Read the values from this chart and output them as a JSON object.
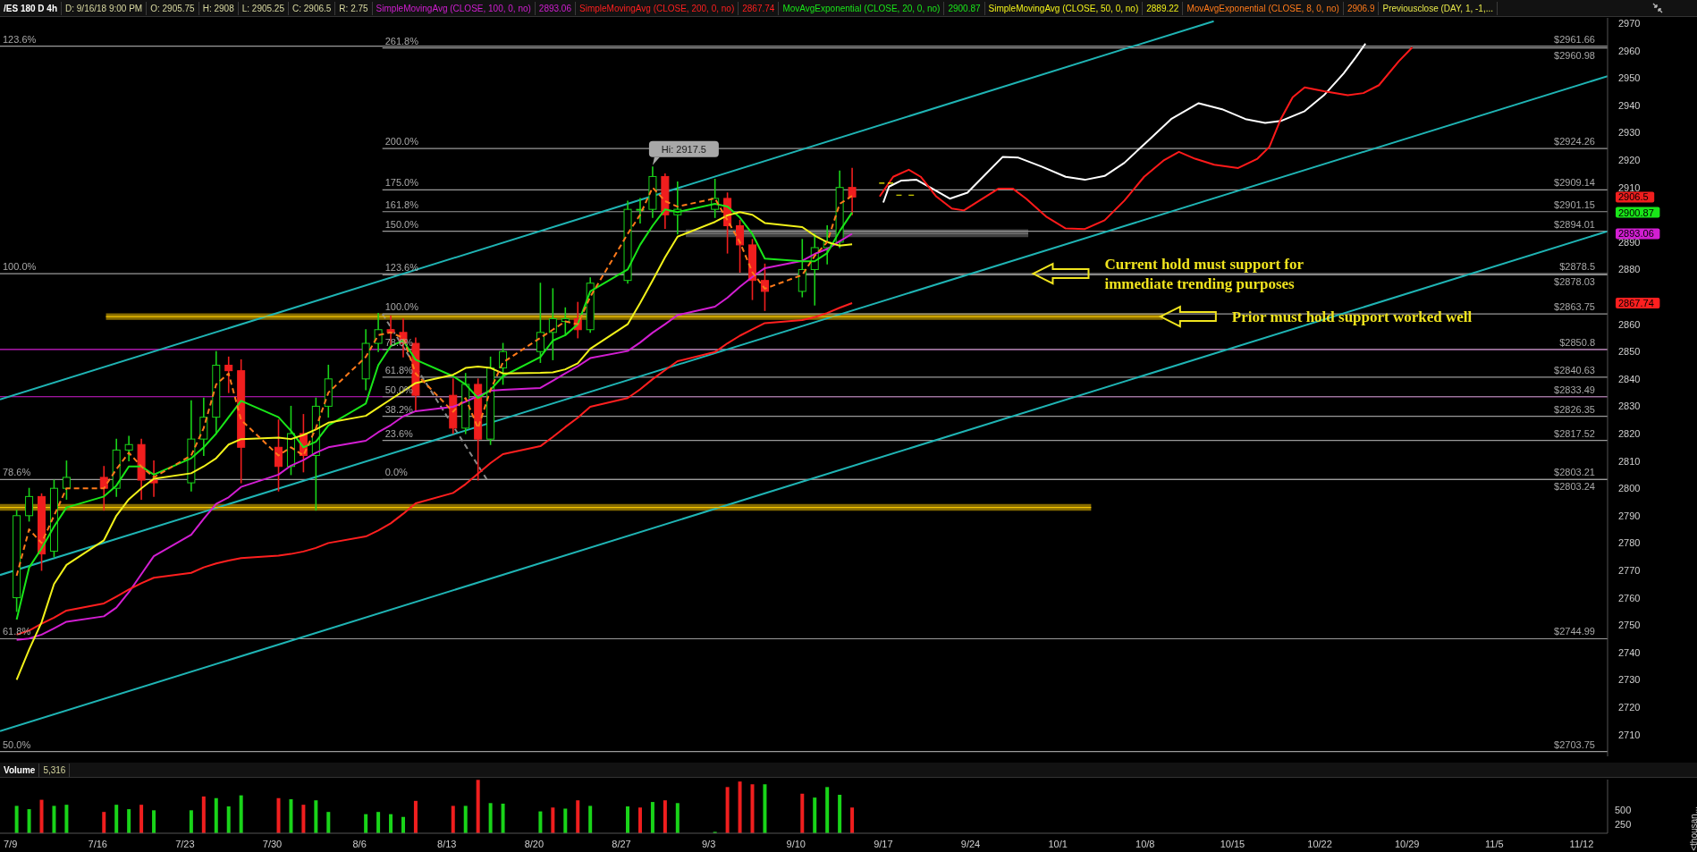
{
  "chart_data": [
    {
      "type": "candlestick",
      "title": "/ES 180 D 4h",
      "subtitle": "Previousclose (DAY, 1, -1,...",
      "legend": "top",
      "tick_labels": "y",
      "x": [
        "--07-09T12:00",
        "--07-10T12:00",
        "--07-11T12:00",
        "--07-12T12:00",
        "--07-13T12:00",
        "--07-16T12:00",
        "--07-17T12:00",
        "--07-18T12:00",
        "--07-19T12:00",
        "--07-20T12:00",
        "--07-23T12:00",
        "--07-24T12:00",
        "--07-25T12:00",
        "--07-26T12:00",
        "--07-27T12:00",
        "--07-30T12:00",
        "--07-31T12:00",
        "--08-01T12:00",
        "--08-02T12:00",
        "--08-03T12:00",
        "--08-06T12:00",
        "--08-07T12:00",
        "--08-08T12:00",
        "--08-09T12:00",
        "--08-10T12:00",
        "--08-13T12:00",
        "--08-14T12:00",
        "--08-15T12:00",
        "--08-16T12:00",
        "--08-17T12:00",
        "--08-20T12:00",
        "--08-21T12:00",
        "--08-22T12:00",
        "--08-23T12:00",
        "--08-24T12:00",
        "--08-27T12:00",
        "--08-28T12:00",
        "--08-29T12:00",
        "--08-30T12:00",
        "--08-31T12:00",
        "--09-03T12:00",
        "--09-04T12:00",
        "--09-05T12:00",
        "--09-06T12:00",
        "--09-07T12:00",
        "--09-10T12:00",
        "--09-11T12:00",
        "--09-12T12:00",
        "--09-13T12:00",
        "--09-14T12:00"
      ],
      "ohlc": [
        [
          2760,
          2792,
          2755,
          2790
        ],
        [
          2790,
          2800,
          2788,
          2797
        ],
        [
          2797,
          2798,
          2770,
          2776
        ],
        [
          2777,
          2803,
          2775,
          2800
        ],
        [
          2800,
          2810,
          2796,
          2804
        ],
        [
          2804,
          2808,
          2792,
          2800
        ],
        [
          2800,
          2818,
          2797,
          2814
        ],
        [
          2814,
          2819,
          2810,
          2816
        ],
        [
          2816,
          2818,
          2796,
          2803
        ],
        [
          2803,
          2810,
          2797,
          2802
        ],
        [
          2802,
          2832,
          2799,
          2818
        ],
        [
          2818,
          2833,
          2812,
          2826
        ],
        [
          2826,
          2850,
          2820,
          2845
        ],
        [
          2845,
          2848,
          2835,
          2843
        ],
        [
          2843,
          2847,
          2802,
          2815
        ],
        [
          2815,
          2825,
          2799,
          2808
        ],
        [
          2808,
          2830,
          2805,
          2820
        ],
        [
          2820,
          2827,
          2806,
          2812
        ],
        [
          2812,
          2833,
          2792,
          2830
        ],
        [
          2830,
          2845,
          2826,
          2840
        ],
        [
          2840,
          2858,
          2836,
          2853
        ],
        [
          2853,
          2864,
          2850,
          2858
        ],
        [
          2858,
          2863,
          2852,
          2857
        ],
        [
          2857,
          2862,
          2848,
          2853
        ],
        [
          2853,
          2855,
          2828,
          2834
        ],
        [
          2834,
          2840,
          2820,
          2822
        ],
        [
          2822,
          2842,
          2820,
          2838
        ],
        [
          2838,
          2840,
          2803,
          2818
        ],
        [
          2818,
          2848,
          2816,
          2844
        ],
        [
          2844,
          2853,
          2838,
          2850
        ],
        [
          2850,
          2875,
          2846,
          2857
        ],
        [
          2857,
          2873,
          2847,
          2862
        ],
        [
          2861,
          2866,
          2856,
          2862
        ],
        [
          2862,
          2868,
          2855,
          2858
        ],
        [
          2858,
          2877,
          2857,
          2875
        ],
        [
          2876,
          2905,
          2875,
          2902
        ],
        [
          2902,
          2906,
          2897,
          2902
        ],
        [
          2902,
          2917.5,
          2899,
          2914
        ],
        [
          2914,
          2915,
          2895,
          2900
        ],
        [
          2900,
          2912,
          2893,
          2902
        ],
        [
          2902,
          2913,
          2899,
          2906
        ],
        [
          2906,
          2908,
          2886,
          2896
        ],
        [
          2896,
          2898,
          2879,
          2889
        ],
        [
          2889,
          2891,
          2869,
          2876
        ],
        [
          2876,
          2882,
          2865,
          2872
        ],
        [
          2872,
          2891,
          2870,
          2880
        ],
        [
          2880,
          2893,
          2867,
          2888
        ],
        [
          2888,
          2896,
          2882,
          2890
        ],
        [
          2890,
          2916,
          2888,
          2910
        ],
        [
          2910,
          2917,
          2900,
          2906.5
        ]
      ],
      "colors": [
        "#19d419",
        "#19d419",
        "#f01e1e",
        "#19d419",
        "#19d419",
        "#f01e1e",
        "#19d419",
        "#19d419",
        "#f01e1e",
        "#f01e1e",
        "#19d419",
        "#19d419",
        "#19d419",
        "#f01e1e",
        "#f01e1e",
        "#f01e1e",
        "#19d419",
        "#f01e1e",
        "#19d419",
        "#19d419",
        "#19d419",
        "#19d419",
        "#f01e1e",
        "#f01e1e",
        "#f01e1e",
        "#f01e1e",
        "#19d419",
        "#f01e1e",
        "#19d419",
        "#19d419",
        "#19d419",
        "#19d419",
        "#19d419",
        "#f01e1e",
        "#19d419",
        "#19d419",
        "#19d419",
        "#19d419",
        "#f01e1e",
        "#19d419",
        "#19d419",
        "#f01e1e",
        "#f01e1e",
        "#f01e1e",
        "#f01e1e",
        "#19d419",
        "#19d419",
        "#19d419",
        "#19d419",
        "#f01e1e"
      ],
      "xlim": [
        "--07-08T04:00",
        "--11-14T02:00"
      ],
      "ylim": [
        2702,
        2972
      ],
      "yticks": [
        2710,
        2720,
        2730,
        2740,
        2750,
        2760,
        2770,
        2780,
        2790,
        2800,
        2810,
        2820,
        2830,
        2840,
        2850,
        2860,
        2867.74,
        2880,
        2890,
        2893.06,
        2900.87,
        2906.5,
        2910,
        2920,
        2930,
        2940,
        2950,
        2960,
        2970
      ],
      "series": [
        {
          "type": "line",
          "name": "SimpleMovingAvg (CLOSE, 100, 0, no)",
          "color": "#d21ed2",
          "values": [
            2744.6,
            2745.1,
            2746.5,
            2748.8,
            2751.2,
            2753.2,
            2756.4,
            2762,
            2768.6,
            2775.2,
            2783,
            2788.8,
            2794.3,
            2796.7,
            2800.5,
            2805,
            2808.3,
            2810.3,
            2813,
            2815,
            2817.4,
            2820.5,
            2823.1,
            2826.3,
            2828.2,
            2829.8,
            2831.7,
            2833.7,
            2835.7,
            2836,
            2836.7,
            2839.3,
            2842,
            2844.6,
            2847.6,
            2850.2,
            2853.3,
            2856.9,
            2860,
            2863.3,
            2866.4,
            2869.7,
            2873.7,
            2877.3,
            2880.5,
            2883.2,
            2885.7,
            2887.5,
            2890.3,
            2893.06
          ]
        },
        {
          "type": "line",
          "name": "SimpleMovingAvg (CLOSE, 200, 0, no)",
          "color": "#ff1f1f",
          "values": [
            2746.5,
            2748,
            2750.5,
            2752.7,
            2755.3,
            2757.9,
            2760.4,
            2763,
            2765.3,
            2767.3,
            2769.1,
            2771.1,
            2772.5,
            2773.6,
            2774.5,
            2775.4,
            2776,
            2776.9,
            2778.2,
            2780,
            2782.4,
            2784.6,
            2787.2,
            2790.7,
            2794.5,
            2798.3,
            2801.5,
            2805.4,
            2809.2,
            2812.5,
            2815.4,
            2818.8,
            2822.4,
            2825.8,
            2829.8,
            2833,
            2836.2,
            2839.9,
            2843.2,
            2846.5,
            2849.8,
            2853,
            2855.8,
            2858.1,
            2860.4,
            2861.5,
            2862.6,
            2864.1,
            2866,
            2867.74
          ]
        },
        {
          "type": "line",
          "name": "MovAvgExponential (CLOSE, 20, 0, no)",
          "color": "#19e619",
          "values": [
            2752,
            2771,
            2778,
            2786,
            2793,
            2797,
            2801,
            2808,
            2808,
            2805,
            2811,
            2815,
            2820,
            2826,
            2832,
            2826,
            2821,
            2815,
            2817,
            2823,
            2831,
            2845,
            2852,
            2854,
            2847,
            2841,
            2838,
            2833,
            2836,
            2841,
            2848,
            2854,
            2856,
            2860,
            2872,
            2880,
            2889,
            2896,
            2902,
            2901,
            2904,
            2903,
            2899,
            2893,
            2884,
            2883,
            2883,
            2886,
            2894,
            2900.87
          ]
        },
        {
          "type": "line",
          "name": "SimpleMovingAvg (CLOSE, 50, 0, no)",
          "color": "#f2f21a",
          "values": [
            2730,
            2741,
            2751,
            2765,
            2772,
            2781,
            2790,
            2796,
            2800,
            2803.5,
            2805.5,
            2808,
            2811,
            2816,
            2818,
            2818.5,
            2818,
            2819.5,
            2821.5,
            2824,
            2826.5,
            2829.5,
            2832.5,
            2835.5,
            2838.5,
            2841.5,
            2844,
            2844.5,
            2844,
            2842,
            2842.2,
            2842.4,
            2843.5,
            2845.7,
            2851,
            2860,
            2867.7,
            2876,
            2884.5,
            2892,
            2897.4,
            2899.8,
            2901,
            2900,
            2897,
            2895.5,
            2892.4,
            2890,
            2888.7,
            2889.22
          ]
        },
        {
          "type": "line",
          "name": "MovAvgExponential (CLOSE, 8, 0, no)",
          "color": "#ff7a1a",
          "line_style": "dashed",
          "values": [
            2768,
            2785,
            2780,
            2790,
            2800,
            2800,
            2807,
            2813,
            2808,
            2804,
            2812,
            2822,
            2838,
            2842,
            2825,
            2812,
            2815,
            2812,
            2822,
            2835,
            2848,
            2856,
            2857,
            2855,
            2842,
            2828,
            2833,
            2822,
            2836,
            2846,
            2855,
            2858,
            2861,
            2860,
            2870,
            2893,
            2900,
            2910,
            2905,
            2903,
            2906,
            2898,
            2890,
            2879,
            2873,
            2878,
            2885,
            2890,
            2904,
            2906.9
          ]
        },
        {
          "type": "line",
          "color": "#9a9a9a",
          "x": [
            "--08-07T20:00",
            "--11-14T02:00"
          ],
          "values": [
            2960.98,
            2960.98
          ],
          "value_labels": [
            null,
            "$2960.98"
          ]
        },
        {
          "type": "line",
          "color": "#9a9a9a",
          "x": [
            "--08-07T20:00",
            "--11-14T02:00"
          ],
          "values": [
            2924.26,
            2924.26
          ],
          "value_labels": [
            null,
            "$2924.26"
          ]
        },
        {
          "type": "line",
          "color": "#9a9a9a",
          "x": [
            "--08-07T20:00",
            "--11-14T02:00"
          ],
          "values": [
            2909.14,
            2909.14
          ],
          "value_labels": [
            null,
            "$2909.14"
          ]
        },
        {
          "type": "line",
          "color": "#9a9a9a",
          "x": [
            "--08-07T20:00",
            "--11-14T02:00"
          ],
          "values": [
            2901.15,
            2901.15
          ],
          "value_labels": [
            null,
            "$2901.15"
          ]
        },
        {
          "type": "line",
          "color": "#9a9a9a",
          "x": [
            "--08-07T20:00",
            "--11-14T02:00"
          ],
          "values": [
            2894.01,
            2894.01
          ],
          "value_labels": [
            null,
            "$2894.01"
          ]
        },
        {
          "type": "line",
          "color": "#9a9a9a",
          "x": [
            "--08-07T20:00",
            "--11-14T02:00"
          ],
          "values": [
            2878.03,
            2878.03
          ],
          "value_labels": [
            null,
            "$2878.03"
          ]
        },
        {
          "type": "line",
          "color": "#9a9a9a",
          "x": [
            "--08-07T20:00",
            "--11-14T02:00"
          ],
          "values": [
            2863.75,
            2863.75
          ],
          "value_labels": [
            null,
            "$2863.75"
          ]
        },
        {
          "type": "line",
          "color": "#9a9a9a",
          "x": [
            "--08-07T20:00",
            "--11-14T02:00"
          ],
          "values": [
            2850.8,
            2850.8
          ],
          "value_labels": [
            null,
            "$2850.8"
          ]
        },
        {
          "type": "line",
          "color": "#9a9a9a",
          "x": [
            "--08-07T20:00",
            "--11-14T02:00"
          ],
          "values": [
            2840.63,
            2840.63
          ],
          "value_labels": [
            null,
            "$2840.63"
          ]
        },
        {
          "type": "line",
          "color": "#9a9a9a",
          "x": [
            "--08-07T20:00",
            "--11-14T02:00"
          ],
          "values": [
            2833.49,
            2833.49
          ],
          "value_labels": [
            null,
            "$2833.49"
          ]
        },
        {
          "type": "line",
          "color": "#9a9a9a",
          "x": [
            "--08-07T20:00",
            "--11-14T02:00"
          ],
          "values": [
            2826.35,
            2826.35
          ],
          "value_labels": [
            null,
            "$2826.35"
          ]
        },
        {
          "type": "line",
          "color": "#9a9a9a",
          "x": [
            "--08-07T20:00",
            "--11-14T02:00"
          ],
          "values": [
            2817.52,
            2817.52
          ],
          "value_labels": [
            null,
            "$2817.52"
          ]
        },
        {
          "type": "line",
          "color": "#9a9a9a",
          "x": [
            "--08-07T20:00",
            "--11-14T02:00"
          ],
          "values": [
            2803.24,
            2803.24
          ],
          "value_labels": [
            null,
            "$2803.24"
          ]
        },
        {
          "type": "line",
          "color": "#8a8a8a",
          "line_style": "dashed",
          "x": [
            "--08-07T20:00",
            "--08-16T05:00"
          ],
          "values": [
            2863.75,
            2803.24
          ]
        },
        {
          "type": "line",
          "color": "#1fb4b4",
          "x": [
            "--07-08T04:00",
            "--10-13T12:00"
          ],
          "values": [
            2832.5,
            2970.8
          ]
        },
        {
          "type": "line",
          "color": "#1fb4b4",
          "x": [
            "--07-08T04:00",
            "--11-14T02:00"
          ],
          "values": [
            2768.3,
            2950.7
          ]
        },
        {
          "type": "line",
          "color": "#1fb4b4",
          "x": [
            "--07-08T04:00",
            "--11-14T02:00"
          ],
          "values": [
            2711.2,
            2894
          ]
        },
        {
          "type": "line",
          "color": "#f5c400",
          "x": [
            "--07-16T16:00",
            "--10-09T10:00"
          ],
          "values": [
            2862.8,
            2862.8
          ],
          "lower": [
            2861.6,
            2861.6
          ],
          "upper": [
            2864,
            2864
          ]
        },
        {
          "type": "line",
          "color": "#f5c400",
          "x": [
            "--07-08T04:00",
            "--10-03T16:00"
          ],
          "values": [
            2793,
            2793
          ],
          "lower": [
            2791.8,
            2791.8
          ],
          "upper": [
            2794.3,
            2794.3
          ]
        },
        {
          "type": "line",
          "color": "#7a7a7a",
          "x": [
            "--09-01T04:00",
            "--09-28T15:00"
          ],
          "values": [
            2893.2,
            2893.2
          ],
          "lower": [
            2891.8,
            2891.8
          ],
          "upper": [
            2894.7,
            2894.7
          ]
        },
        {
          "type": "line",
          "color": "#ffffff",
          "x": [
            "--09-17T00:00",
            "--09-17T11:00",
            "--09-18T10:00",
            "--09-19T16:00",
            "--09-20T22:00",
            "--09-22T08:00",
            "--09-23T18:00",
            "--09-25T00:00",
            "--09-26T14:00",
            "--09-27T20:00",
            "--09-29T17:00",
            "--10-01T15:00",
            "--10-03T04:00",
            "--10-04T18:00",
            "--10-06T08:00",
            "--10-08T05:00",
            "--10-10T02:00",
            "--10-12T07:00",
            "--10-14T04:00",
            "--10-16T01:00",
            "--10-17T15:00",
            "--10-18T21:00",
            "--10-20T19:00",
            "--10-22T08:00",
            "--10-23T22:00",
            "--10-24T21:00",
            "--10-25T16:00"
          ],
          "values": [
            2904.5,
            2910.3,
            2912.5,
            2912.8,
            2909.6,
            2905.9,
            2908.1,
            2913.9,
            2921.2,
            2920.9,
            2917.6,
            2913.9,
            2912.8,
            2914.2,
            2919,
            2927,
            2935,
            2940.8,
            2938.6,
            2935,
            2933.6,
            2934.3,
            2937.9,
            2943.7,
            2951.7,
            2957.5,
            2962.6
          ]
        },
        {
          "type": "line",
          "color": "#ff1a1a",
          "x": [
            "--09-16T17:00",
            "--09-17T19:00",
            "--09-19T01:00",
            "--09-20T00:00",
            "--09-21T06:00",
            "--09-22T12:00",
            "--09-23T11:00",
            "--09-24T17:00",
            "--09-26T06:00",
            "--09-27T09:00",
            "--09-28T11:00",
            "--09-30T01:00",
            "--10-01T15:00",
            "--10-03T04:00",
            "--10-04T18:00",
            "--10-06T08:00",
            "--10-07T22:00",
            "--10-09T11:00",
            "--10-10T17:00",
            "--10-12T00:00",
            "--10-13T13:00",
            "--10-15T11:00",
            "--10-17T00:00",
            "--10-17T23:00",
            "--10-18T21:00",
            "--10-19T20:00",
            "--10-20T19:00",
            "--10-22T08:00",
            "--10-24T06:00",
            "--10-25T12:00",
            "--10-26T18:00",
            "--10-28T08:00",
            "--10-29T10:00"
          ],
          "values": [
            2906.7,
            2913.9,
            2916.5,
            2913.9,
            2906.7,
            2902.3,
            2901.6,
            2905.2,
            2909.6,
            2909.6,
            2905.9,
            2899.4,
            2895,
            2894.8,
            2898,
            2905.2,
            2913.9,
            2919.8,
            2923,
            2920.5,
            2918.3,
            2917.1,
            2920.5,
            2924.8,
            2935,
            2943,
            2946.6,
            2945.2,
            2943.7,
            2944.5,
            2947.4,
            2956.1,
            2961.2
          ]
        },
        {
          "type": "line",
          "color": "#ffff00",
          "line_style": "dashed",
          "x": [
            "--09-16T16:00",
            "--09-17T19:00"
          ],
          "values": [
            2911.6,
            2911.6
          ]
        },
        {
          "type": "line",
          "color": "#ffff00",
          "line_style": "dashed",
          "x": [
            "--09-18T01:00",
            "--09-19T11:00"
          ],
          "values": [
            2907.2,
            2907.2
          ]
        }
      ],
      "ref_lines": [
        {
          "axis": "y",
          "value": 2961.66,
          "label": "$2961.66",
          "color": "#9a9a9a"
        },
        {
          "axis": "y",
          "value": 2878.5,
          "label": "$2878.5",
          "color": "#9a9a9a"
        },
        {
          "axis": "y",
          "value": 2803.21,
          "label": "$2803.21",
          "color": "#9a9a9a"
        },
        {
          "axis": "y",
          "value": 2744.99,
          "label": "$2744.99",
          "color": "#9a9a9a"
        },
        {
          "axis": "y",
          "value": 2703.75,
          "label": "$2703.75",
          "color": "#9a9a9a"
        },
        {
          "axis": "y",
          "value": 2850.8,
          "color": "#d21ed2"
        },
        {
          "axis": "y",
          "value": 2833.49,
          "color": "#d21ed2"
        }
      ],
      "annotations": [
        "D: 9/16/18 9:00 PM",
        "O: 2905.75",
        "H: 2908",
        "L: 2905.25",
        "C: 2906.5",
        "R: 2.75",
        "2893.06",
        "2867.74",
        "2900.87",
        "2889.22",
        "2906.9",
        {
          "text": "Hi: 2917.5",
          "x": "--08-29T12:00",
          "y": 2917.5
        },
        {
          "text": "Current hold must support for immediate trending purposes",
          "x": "--10-04T18:00",
          "y": 2878.5
        },
        {
          "text": "Prior must hold support worked well",
          "x": "--10-14T23:00",
          "y": 2862.8
        },
        {
          "text": "123.6%",
          "x": "--07-08T04:00",
          "y": 2961.66
        },
        {
          "text": "100.0%",
          "x": "--07-08T04:00",
          "y": 2878.5
        },
        {
          "text": "78.6%",
          "x": "--07-08T04:00",
          "y": 2803.21
        },
        {
          "text": "61.8%",
          "x": "--07-08T04:00",
          "y": 2744.99
        },
        {
          "text": "50.0%",
          "x": "--07-08T04:00",
          "y": 2703.75
        },
        {
          "text": "261.8%",
          "x": "--08-07T20:00",
          "y": 2960.98
        },
        {
          "text": "200.0%",
          "x": "--08-07T20:00",
          "y": 2924.26
        },
        {
          "text": "175.0%",
          "x": "--08-07T20:00",
          "y": 2909.14
        },
        {
          "text": "161.8%",
          "x": "--08-07T20:00",
          "y": 2901.15
        },
        {
          "text": "150.0%",
          "x": "--08-07T20:00",
          "y": 2894.01
        },
        {
          "text": "123.6%",
          "x": "--08-07T20:00",
          "y": 2878.03
        },
        {
          "text": "100.0%",
          "x": "--08-07T20:00",
          "y": 2863.75
        },
        {
          "text": "78.6%",
          "x": "--08-07T20:00",
          "y": 2850.8
        },
        {
          "text": "61.8%",
          "x": "--08-07T20:00",
          "y": 2840.63
        },
        {
          "text": "50.0%",
          "x": "--08-07T20:00",
          "y": 2833.49
        },
        {
          "text": "38.2%",
          "x": "--08-07T20:00",
          "y": 2826.35
        },
        {
          "text": "23.6%",
          "x": "--08-07T20:00",
          "y": 2817.52
        },
        {
          "text": "0.0%",
          "x": "--08-07T20:00",
          "y": 2803.24
        }
      ]
    },
    {
      "type": "bar",
      "title": "Volume",
      "ylabel": "<thousan...",
      "x": [
        "--07-09T12:00",
        "--07-10T12:00",
        "--07-11T12:00",
        "--07-12T12:00",
        "--07-13T12:00",
        "--07-16T12:00",
        "--07-17T12:00",
        "--07-18T12:00",
        "--07-19T12:00",
        "--07-20T12:00",
        "--07-23T12:00",
        "--07-24T12:00",
        "--07-25T12:00",
        "--07-26T12:00",
        "--07-27T12:00",
        "--07-30T12:00",
        "--07-31T12:00",
        "--08-01T12:00",
        "--08-02T12:00",
        "--08-03T12:00",
        "--08-06T12:00",
        "--08-07T12:00",
        "--08-08T12:00",
        "--08-09T12:00",
        "--08-10T12:00",
        "--08-13T12:00",
        "--08-14T12:00",
        "--08-15T12:00",
        "--08-16T12:00",
        "--08-17T12:00",
        "--08-20T12:00",
        "--08-21T12:00",
        "--08-22T12:00",
        "--08-23T12:00",
        "--08-24T12:00",
        "--08-27T12:00",
        "--08-28T12:00",
        "--08-29T12:00",
        "--08-30T12:00",
        "--08-31T12:00",
        "--09-03T12:00",
        "--09-04T12:00",
        "--09-05T12:00",
        "--09-06T12:00",
        "--09-07T12:00",
        "--09-10T12:00",
        "--09-11T12:00",
        "--09-12T12:00",
        "--09-13T12:00",
        "--09-14T12:00"
      ],
      "values": [
        580,
        520,
        690,
        580,
        600,
        470,
        600,
        520,
        600,
        500,
        500,
        750,
        720,
        570,
        770,
        720,
        700,
        600,
        680,
        470,
        430,
        470,
        430,
        380,
        670,
        580,
        580,
        1050,
        630,
        620,
        480,
        550,
        530,
        680,
        580,
        570,
        550,
        650,
        680,
        630,
        110,
        920,
        1020,
        970,
        970,
        800,
        730,
        920,
        780,
        550
      ],
      "colors": [
        "#19d419",
        "#19d419",
        "#f01e1e",
        "#19d419",
        "#19d419",
        "#f01e1e",
        "#19d419",
        "#19d419",
        "#f01e1e",
        "#19d419",
        "#19d419",
        "#f01e1e",
        "#19d419",
        "#19d419",
        "#19d419",
        "#f01e1e",
        "#19d419",
        "#f01e1e",
        "#19d419",
        "#19d419",
        "#19d419",
        "#19d419",
        "#19d419",
        "#19d419",
        "#f01e1e",
        "#f01e1e",
        "#19d419",
        "#f01e1e",
        "#19d419",
        "#19d419",
        "#19d419",
        "#f01e1e",
        "#19d419",
        "#f01e1e",
        "#19d419",
        "#19d419",
        "#f01e1e",
        "#19d419",
        "#f01e1e",
        "#19d419",
        "#19d419",
        "#f01e1e",
        "#f01e1e",
        "#f01e1e",
        "#19d419",
        "#f01e1e",
        "#19d419",
        "#19d419",
        "#19d419",
        "#f01e1e"
      ],
      "xlim": [
        "--07-08T04:00",
        "--11-14T02:00"
      ],
      "xticks": [
        {
          "value": "--07-09",
          "label": "7/9"
        },
        {
          "value": "--07-16",
          "label": "7/16"
        },
        {
          "value": "--07-23",
          "label": "7/23"
        },
        {
          "value": "--07-30",
          "label": "7/30"
        },
        {
          "value": "--08-06",
          "label": "8/6"
        },
        {
          "value": "--08-13",
          "label": "8/13"
        },
        {
          "value": "--08-20",
          "label": "8/20"
        },
        {
          "value": "--08-27",
          "label": "8/27"
        },
        {
          "value": "--09-03",
          "label": "9/3"
        },
        {
          "value": "--09-10",
          "label": "9/10"
        },
        {
          "value": "--09-17",
          "label": "9/17"
        },
        {
          "value": "--09-24",
          "label": "9/24"
        },
        {
          "value": "--10-01",
          "label": "10/1"
        },
        {
          "value": "--10-08",
          "label": "10/8"
        },
        {
          "value": "--10-15",
          "label": "10/15"
        },
        {
          "value": "--10-22",
          "label": "10/22"
        },
        {
          "value": "--10-29",
          "label": "10/29"
        },
        {
          "value": "--11-05",
          "label": "11/5"
        },
        {
          "value": "--11-12",
          "label": "11/12"
        }
      ],
      "ylim": [
        85,
        1055
      ],
      "yticks": [
        250,
        500
      ],
      "annotations": [
        "5,316"
      ]
    }
  ]
}
